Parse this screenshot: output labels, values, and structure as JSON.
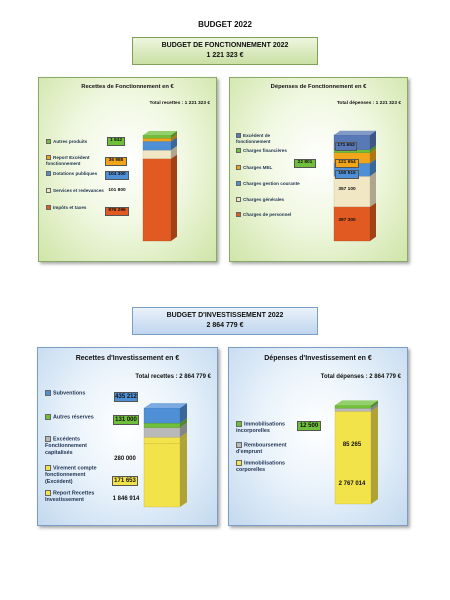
{
  "document_title": "BUDGET 2022",
  "fonctionnement": {
    "banner_title": "BUDGET DE FONCTIONNEMENT 2022",
    "banner_total": "1 221 323 €"
  },
  "investissement": {
    "banner_title": "BUDGET D'INVESTISSEMENT 2022",
    "banner_total": "2 864 779 €"
  },
  "colors": {
    "green": "#6fbf3a",
    "orange": "#f0a51a",
    "blue": "#4f8fd6",
    "beige": "#f2e7c4",
    "red": "#e05a22",
    "yellow": "#f3e34a",
    "gray": "#b9b9b9",
    "lightblue": "#9fc5ee",
    "navy": "#5878b6"
  },
  "chart_data": [
    {
      "type": "bar",
      "stacked": true,
      "title": "Recettes de Fonctionnement en €",
      "total_label": "Total recettes : 1 221 323 €",
      "categories": [
        ""
      ],
      "series": [
        {
          "name": "Impôts et taxes",
          "values": [
            976296
          ],
          "label": "976 296",
          "color": "red"
        },
        {
          "name": "Services et redevances",
          "values": [
            101800
          ],
          "label": "101 800",
          "color": "beige"
        },
        {
          "name": "Dotations publiques",
          "values": [
            104300
          ],
          "label": "104 300",
          "color": "blue"
        },
        {
          "name": "Report Excédent fonctionnement",
          "values": [
            36985
          ],
          "label": "36 985",
          "color": "orange"
        },
        {
          "name": "Autres produits",
          "values": [
            1942
          ],
          "label": "1 942",
          "color": "green"
        }
      ]
    },
    {
      "type": "bar",
      "stacked": true,
      "title": "Dépenses de Fonctionnement en €",
      "total_label": "Total dépenses : 1 221 323 €",
      "categories": [
        ""
      ],
      "series": [
        {
          "name": "Charges de personnel",
          "values": [
            397300
          ],
          "label": "397 300",
          "color": "red"
        },
        {
          "name": "Charges générales",
          "values": [
            357100
          ],
          "label": "357 100",
          "color": "beige"
        },
        {
          "name": "Charges gestion courante",
          "values": [
            150515
          ],
          "label": "150 515",
          "color": "blue"
        },
        {
          "name": "Charges MEL",
          "values": [
            121954
          ],
          "label": "121 954",
          "color": "orange"
        },
        {
          "name": "Charges financières",
          "values": [
            22801
          ],
          "label": "22 801",
          "color": "green"
        },
        {
          "name": "Excédent de fonctionnement",
          "values": [
            171653
          ],
          "label": "171 653",
          "color": "navy"
        }
      ]
    },
    {
      "type": "bar",
      "stacked": true,
      "title": "Recettes d'Investissement en €",
      "total_label": "Total recettes : 2 864 779 €",
      "categories": [
        ""
      ],
      "series": [
        {
          "name": "Report Recettes Investissement",
          "values": [
            1846914
          ],
          "label": "1 846 914",
          "color": "yellow"
        },
        {
          "name": "Virement compte fonctionnement (Excédent)",
          "values": [
            171653
          ],
          "label": "171 653",
          "color": "yellow"
        },
        {
          "name": "Excédents Fonctionnement capitalisés",
          "values": [
            280000
          ],
          "label": "280 000",
          "color": "gray"
        },
        {
          "name": "Autres réserves",
          "values": [
            131000
          ],
          "label": "131 000",
          "color": "green"
        },
        {
          "name": "Subventions",
          "values": [
            435212
          ],
          "label": "435 212",
          "color": "blue"
        }
      ]
    },
    {
      "type": "bar",
      "stacked": true,
      "title": "Dépenses d'Investissement en €",
      "total_label": "Total dépenses : 2 864 779 €",
      "categories": [
        ""
      ],
      "series": [
        {
          "name": "Immobilisations corporelles",
          "values": [
            2767014
          ],
          "label": "2 767 014",
          "color": "yellow"
        },
        {
          "name": "Remboursement d'emprunt",
          "values": [
            85265
          ],
          "label": "85 265",
          "color": "gray"
        },
        {
          "name": "Immobilisations incorporelles",
          "values": [
            12500
          ],
          "label": "12 500",
          "color": "green"
        }
      ]
    }
  ]
}
